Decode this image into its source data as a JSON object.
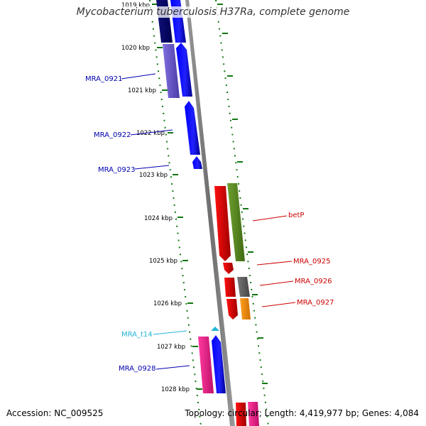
{
  "title": "Mycobacterium tuberculosis H37Ra, complete genome",
  "accession_text": "Accession: NC_009525",
  "topology_text": "Topology: circular; Length: 4,419,977 bp; Genes: 4,084",
  "ticks": [
    "1019 kbp",
    "1020 kbp",
    "1021 kbp",
    "1022 kbp",
    "1023 kbp",
    "1024 kbp",
    "1025 kbp",
    "1026 kbp",
    "1027 kbp",
    "1028 kbp"
  ],
  "gene_labels": [
    {
      "text": "MRA_0921",
      "color": "#0000b0"
    },
    {
      "text": "MRA_0922",
      "color": "#0000b0"
    },
    {
      "text": "MRA_0923",
      "color": "#0000b0"
    },
    {
      "text": "betP",
      "color": "#cc0000"
    },
    {
      "text": "MRA_0925",
      "color": "#cc0000"
    },
    {
      "text": "MRA_0926",
      "color": "#cc0000"
    },
    {
      "text": "MRA_0927",
      "color": "#cc0000"
    },
    {
      "text": "MRA_t14",
      "color": "#22b5d8"
    },
    {
      "text": "MRA_0928",
      "color": "#0000b0"
    }
  ],
  "colors": {
    "backbone": "#808080",
    "ruler": "#117711",
    "forward_gene": "#0000ee",
    "reverse_gene": "#ee0000",
    "trna": "#22b5d8"
  }
}
